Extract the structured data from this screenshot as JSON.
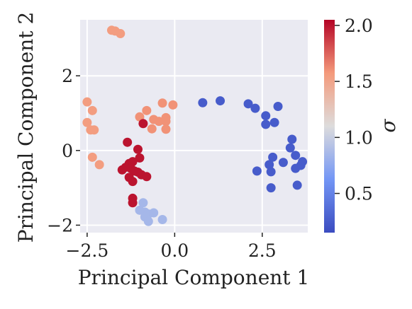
{
  "chart_data": {
    "type": "scatter",
    "xlabel": "Principal Component 1",
    "ylabel": "Principal Component 2",
    "xlim": [
      -2.7,
      3.8
    ],
    "ylim": [
      -2.2,
      3.5
    ],
    "xticks": [
      -2.5,
      0.0,
      2.5
    ],
    "xtick_labels": [
      "−2.5",
      "0.0",
      "2.5"
    ],
    "yticks": [
      -2,
      0,
      2
    ],
    "ytick_labels": [
      "−2",
      "0",
      "2"
    ],
    "grid": true,
    "background": "#eaeaf2",
    "colorbar": {
      "label": "σ",
      "colormap": "coolwarm",
      "range": [
        0.15,
        2.05
      ],
      "ticks": [
        0.5,
        1.0,
        1.5,
        2.0
      ],
      "tick_labels": [
        "0.5",
        "1.0",
        "1.5",
        "2.0"
      ]
    },
    "points": [
      {
        "x": -1.8,
        "y": 3.22,
        "c": 1.55
      },
      {
        "x": -1.7,
        "y": 3.2,
        "c": 1.55
      },
      {
        "x": -1.55,
        "y": 3.13,
        "c": 1.55
      },
      {
        "x": -2.5,
        "y": 1.3,
        "c": 1.55
      },
      {
        "x": -2.35,
        "y": 1.07,
        "c": 1.55
      },
      {
        "x": -2.5,
        "y": 0.75,
        "c": 1.55
      },
      {
        "x": -2.4,
        "y": 0.55,
        "c": 1.55
      },
      {
        "x": -2.3,
        "y": 0.55,
        "c": 1.55
      },
      {
        "x": -2.35,
        "y": -0.18,
        "c": 1.55
      },
      {
        "x": -2.15,
        "y": -0.38,
        "c": 1.55
      },
      {
        "x": -0.35,
        "y": 1.27,
        "c": 1.6
      },
      {
        "x": -0.05,
        "y": 1.22,
        "c": 1.6
      },
      {
        "x": -0.8,
        "y": 1.07,
        "c": 1.6
      },
      {
        "x": -1.0,
        "y": 0.9,
        "c": 1.6
      },
      {
        "x": -0.6,
        "y": 0.83,
        "c": 1.6
      },
      {
        "x": -0.45,
        "y": 0.78,
        "c": 1.6
      },
      {
        "x": -0.25,
        "y": 0.88,
        "c": 1.6
      },
      {
        "x": -0.25,
        "y": 0.78,
        "c": 1.6
      },
      {
        "x": -0.65,
        "y": 0.58,
        "c": 1.6
      },
      {
        "x": -0.25,
        "y": 0.57,
        "c": 1.6
      },
      {
        "x": -0.9,
        "y": 0.72,
        "c": 2.0
      },
      {
        "x": -1.35,
        "y": 0.22,
        "c": 2.0
      },
      {
        "x": -1.05,
        "y": 0.03,
        "c": 2.0
      },
      {
        "x": -1.0,
        "y": -0.2,
        "c": 2.0
      },
      {
        "x": -1.3,
        "y": -0.35,
        "c": 2.0
      },
      {
        "x": -1.2,
        "y": -0.3,
        "c": 2.0
      },
      {
        "x": -1.4,
        "y": -0.45,
        "c": 2.0
      },
      {
        "x": -1.5,
        "y": -0.52,
        "c": 2.0
      },
      {
        "x": -1.25,
        "y": -0.48,
        "c": 2.0
      },
      {
        "x": -1.15,
        "y": -0.55,
        "c": 2.0
      },
      {
        "x": -1.05,
        "y": -0.58,
        "c": 2.0
      },
      {
        "x": -0.95,
        "y": -0.65,
        "c": 2.0
      },
      {
        "x": -1.3,
        "y": -0.72,
        "c": 2.0
      },
      {
        "x": -0.8,
        "y": -0.7,
        "c": 2.0
      },
      {
        "x": -1.2,
        "y": -0.83,
        "c": 2.0
      },
      {
        "x": -1.2,
        "y": -1.28,
        "c": 2.0
      },
      {
        "x": -1.2,
        "y": -1.4,
        "c": 2.0
      },
      {
        "x": -0.9,
        "y": -1.4,
        "c": 0.85
      },
      {
        "x": -1.0,
        "y": -1.6,
        "c": 0.85
      },
      {
        "x": -0.85,
        "y": -1.65,
        "c": 0.85
      },
      {
        "x": -0.75,
        "y": -1.7,
        "c": 0.85
      },
      {
        "x": -0.6,
        "y": -1.67,
        "c": 0.85
      },
      {
        "x": -0.85,
        "y": -1.78,
        "c": 0.85
      },
      {
        "x": -0.35,
        "y": -1.85,
        "c": 0.85
      },
      {
        "x": -0.75,
        "y": -1.9,
        "c": 0.85
      },
      {
        "x": 0.8,
        "y": 1.28,
        "c": 0.25
      },
      {
        "x": 1.3,
        "y": 1.33,
        "c": 0.25
      },
      {
        "x": 2.1,
        "y": 1.25,
        "c": 0.25
      },
      {
        "x": 2.3,
        "y": 1.13,
        "c": 0.25
      },
      {
        "x": 2.95,
        "y": 1.18,
        "c": 0.25
      },
      {
        "x": 2.6,
        "y": 0.93,
        "c": 0.25
      },
      {
        "x": 2.85,
        "y": 0.75,
        "c": 0.25
      },
      {
        "x": 2.6,
        "y": 0.7,
        "c": 0.25
      },
      {
        "x": 3.35,
        "y": 0.3,
        "c": 0.25
      },
      {
        "x": 3.3,
        "y": 0.07,
        "c": 0.25
      },
      {
        "x": 3.45,
        "y": -0.13,
        "c": 0.25
      },
      {
        "x": 2.8,
        "y": -0.18,
        "c": 0.25
      },
      {
        "x": 3.1,
        "y": -0.32,
        "c": 0.25
      },
      {
        "x": 2.7,
        "y": -0.38,
        "c": 0.25
      },
      {
        "x": 3.65,
        "y": -0.3,
        "c": 0.25
      },
      {
        "x": 3.6,
        "y": -0.4,
        "c": 0.25
      },
      {
        "x": 3.45,
        "y": -0.48,
        "c": 0.25
      },
      {
        "x": 2.35,
        "y": -0.55,
        "c": 0.25
      },
      {
        "x": 2.75,
        "y": -0.57,
        "c": 0.25
      },
      {
        "x": 3.5,
        "y": -0.93,
        "c": 0.25
      },
      {
        "x": 2.75,
        "y": -1.0,
        "c": 0.25
      }
    ]
  }
}
